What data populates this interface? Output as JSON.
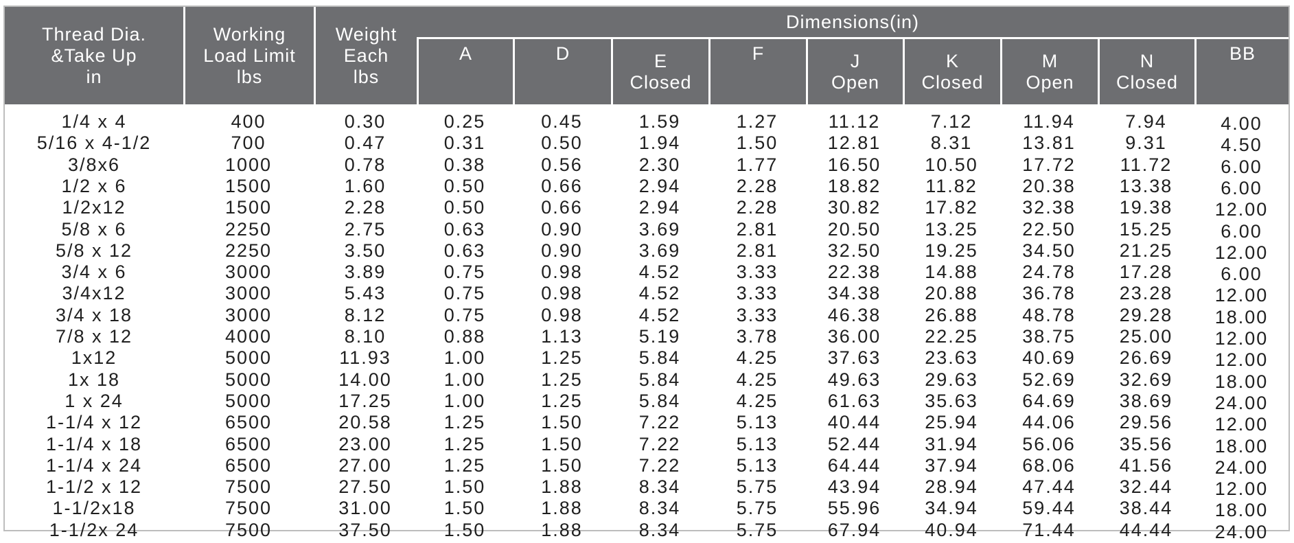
{
  "table": {
    "header": {
      "group": "Dimensions(in)",
      "columns": [
        [
          "Thread Dia.",
          "&Take Up",
          "in"
        ],
        [
          "Working",
          "Load Limit",
          "lbs"
        ],
        [
          "Weight",
          "Each",
          "lbs"
        ],
        [
          "A"
        ],
        [
          "D"
        ],
        [
          "E",
          "Closed"
        ],
        [
          "F"
        ],
        [
          "J",
          "Open"
        ],
        [
          "K",
          "Closed"
        ],
        [
          "M",
          "Open"
        ],
        [
          "N",
          "Closed"
        ],
        [
          "BB"
        ]
      ]
    },
    "rows": [
      [
        "1/4 x 4",
        "400",
        "0.30",
        "0.25",
        "0.45",
        "1.59",
        "1.27",
        "11.12",
        "7.12",
        "11.94",
        "7.94",
        "4.00"
      ],
      [
        "5/16 x 4-1/2",
        "700",
        "0.47",
        "0.31",
        "0.50",
        "1.94",
        "1.50",
        "12.81",
        "8.31",
        "13.81",
        "9.31",
        "4.50"
      ],
      [
        "3/8x6",
        "1000",
        "0.78",
        "0.38",
        "0.56",
        "2.30",
        "1.77",
        "16.50",
        "10.50",
        "17.72",
        "11.72",
        "6.00"
      ],
      [
        "1/2 x 6",
        "1500",
        "1.60",
        "0.50",
        "0.66",
        "2.94",
        "2.28",
        "18.82",
        "11.82",
        "20.38",
        "13.38",
        "6.00"
      ],
      [
        "1/2x12",
        "1500",
        "2.28",
        "0.50",
        "0.66",
        "2.94",
        "2.28",
        "30.82",
        "17.82",
        "32.38",
        "19.38",
        "12.00"
      ],
      [
        "5/8 x 6",
        "2250",
        "2.75",
        "0.63",
        "0.90",
        "3.69",
        "2.81",
        "20.50",
        "13.25",
        "22.50",
        "15.25",
        "6.00"
      ],
      [
        "5/8 x 12",
        "2250",
        "3.50",
        "0.63",
        "0.90",
        "3.69",
        "2.81",
        "32.50",
        "19.25",
        "34.50",
        "21.25",
        "12.00"
      ],
      [
        "3/4 x 6",
        "3000",
        "3.89",
        "0.75",
        "0.98",
        "4.52",
        "3.33",
        "22.38",
        "14.88",
        "24.78",
        "17.28",
        "6.00"
      ],
      [
        "3/4x12",
        "3000",
        "5.43",
        "0.75",
        "0.98",
        "4.52",
        "3.33",
        "34.38",
        "20.88",
        "36.78",
        "23.28",
        "12.00"
      ],
      [
        "3/4 x 18",
        "3000",
        "8.12",
        "0.75",
        "0.98",
        "4.52",
        "3.33",
        "46.38",
        "26.88",
        "48.78",
        "29.28",
        "18.00"
      ],
      [
        "7/8 x 12",
        "4000",
        "8.10",
        "0.88",
        "1.13",
        "5.19",
        "3.78",
        "36.00",
        "22.25",
        "38.75",
        "25.00",
        "12.00"
      ],
      [
        "1x12",
        "5000",
        "11.93",
        "1.00",
        "1.25",
        "5.84",
        "4.25",
        "37.63",
        "23.63",
        "40.69",
        "26.69",
        "12.00"
      ],
      [
        "1x 18",
        "5000",
        "14.00",
        "1.00",
        "1.25",
        "5.84",
        "4.25",
        "49.63",
        "29.63",
        "52.69",
        "32.69",
        "18.00"
      ],
      [
        "1 x 24",
        "5000",
        "17.25",
        "1.00",
        "1.25",
        "5.84",
        "4.25",
        "61.63",
        "35.63",
        "64.69",
        "38.69",
        "24.00"
      ],
      [
        "1-1/4 x 12",
        "6500",
        "20.58",
        "1.25",
        "1.50",
        "7.22",
        "5.13",
        "40.44",
        "25.94",
        "44.06",
        "29.56",
        "12.00"
      ],
      [
        "1-1/4 x 18",
        "6500",
        "23.00",
        "1.25",
        "1.50",
        "7.22",
        "5.13",
        "52.44",
        "31.94",
        "56.06",
        "35.56",
        "18.00"
      ],
      [
        "1-1/4 x 24",
        "6500",
        "27.00",
        "1.25",
        "1.50",
        "7.22",
        "5.13",
        "64.44",
        "37.94",
        "68.06",
        "41.56",
        "24.00"
      ],
      [
        "1-1/2 x 12",
        "7500",
        "27.50",
        "1.50",
        "1.88",
        "8.34",
        "5.75",
        "43.94",
        "28.94",
        "47.44",
        "32.44",
        "12.00"
      ],
      [
        "1-1/2x18",
        "7500",
        "31.00",
        "1.50",
        "1.88",
        "8.34",
        "5.75",
        "55.96",
        "34.94",
        "59.44",
        "38.44",
        "18.00"
      ],
      [
        "1-1/2x 24",
        "7500",
        "37.50",
        "1.50",
        "1.88",
        "8.34",
        "5.75",
        "67.94",
        "40.94",
        "71.44",
        "44.44",
        "24.00"
      ]
    ]
  }
}
